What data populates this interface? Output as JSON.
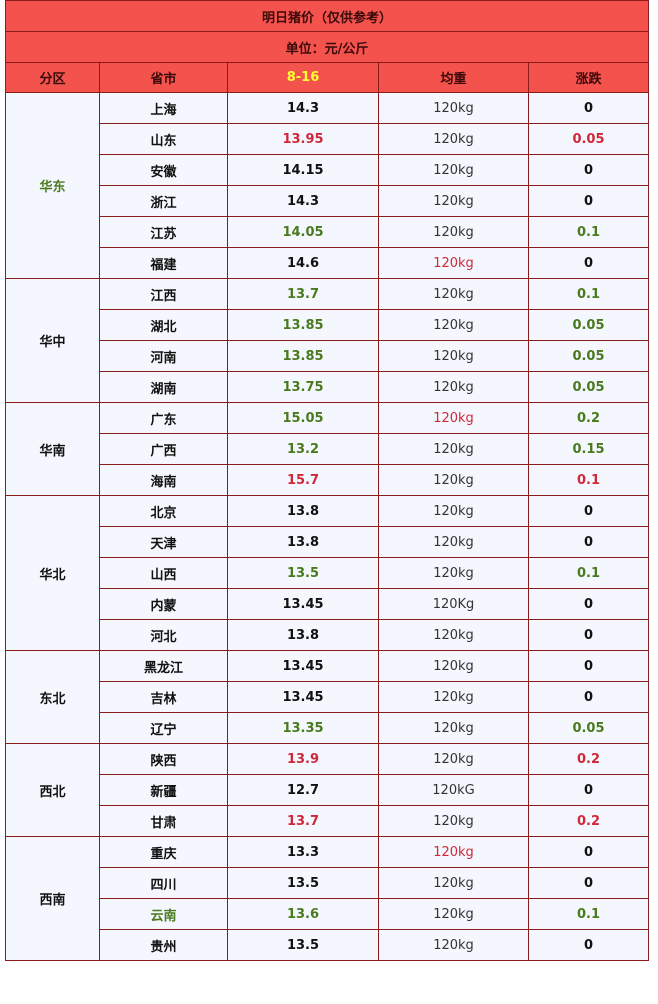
{
  "title": "明日猪价（仅供参考）",
  "unit": "单位：元/公斤",
  "headers": {
    "region": "分区",
    "province": "省市",
    "date": "8-16",
    "weight": "均重",
    "change": "涨跌"
  },
  "colors": {
    "header_bg": "#f4524d",
    "date_header": "#ffff33",
    "row_bg": "#f4f7fd",
    "border": "#8b1a1a",
    "up": "#d0283a",
    "down": "#4a7a1e"
  },
  "groups": [
    {
      "region": "华东",
      "region_color": "green",
      "rows": [
        {
          "province": "上海",
          "price": "14.3",
          "weight": "120kg",
          "change": "0"
        },
        {
          "province": "山东",
          "price": "13.95",
          "price_color": "red",
          "weight": "120kg",
          "change": "0.05",
          "change_color": "red"
        },
        {
          "province": "安徽",
          "price": "14.15",
          "weight": "120kg",
          "change": "0"
        },
        {
          "province": "浙江",
          "price": "14.3",
          "weight": "120kg",
          "change": "0"
        },
        {
          "province": "江苏",
          "price": "14.05",
          "price_color": "green",
          "weight": "120kg",
          "change": "0.1",
          "change_color": "green"
        },
        {
          "province": "福建",
          "price": "14.6",
          "weight": "120kg",
          "weight_color": "red",
          "change": "0"
        }
      ]
    },
    {
      "region": "华中",
      "rows": [
        {
          "province": "江西",
          "price": "13.7",
          "price_color": "green",
          "weight": "120kg",
          "change": "0.1",
          "change_color": "green"
        },
        {
          "province": "湖北",
          "price": "13.85",
          "price_color": "green",
          "weight": "120kg",
          "change": "0.05",
          "change_color": "green"
        },
        {
          "province": "河南",
          "price": "13.85",
          "price_color": "green",
          "weight": "120kg",
          "change": "0.05",
          "change_color": "green"
        },
        {
          "province": "湖南",
          "price": "13.75",
          "price_color": "green",
          "weight": "120kg",
          "change": "0.05",
          "change_color": "green"
        }
      ]
    },
    {
      "region": "华南",
      "rows": [
        {
          "province": "广东",
          "price": "15.05",
          "price_color": "green",
          "weight": "120kg",
          "weight_color": "red",
          "change": "0.2",
          "change_color": "green"
        },
        {
          "province": "广西",
          "price": "13.2",
          "price_color": "green",
          "weight": "120kg",
          "change": "0.15",
          "change_color": "green"
        },
        {
          "province": "海南",
          "price": "15.7",
          "price_color": "red",
          "weight": "120kg",
          "change": "0.1",
          "change_color": "red"
        }
      ]
    },
    {
      "region": "华北",
      "rows": [
        {
          "province": "北京",
          "price": "13.8",
          "weight": "120kg",
          "change": "0"
        },
        {
          "province": "天津",
          "price": "13.8",
          "weight": "120kg",
          "change": "0"
        },
        {
          "province": "山西",
          "price": "13.5",
          "price_color": "green",
          "weight": "120kg",
          "change": "0.1",
          "change_color": "green"
        },
        {
          "province": "内蒙",
          "price": "13.45",
          "weight": "120Kg",
          "change": "0"
        },
        {
          "province": "河北",
          "price": "13.8",
          "weight": "120kg",
          "change": "0"
        }
      ]
    },
    {
      "region": "东北",
      "rows": [
        {
          "province": "黑龙江",
          "price": "13.45",
          "weight": "120kg",
          "change": "0"
        },
        {
          "province": "吉林",
          "price": "13.45",
          "weight": "120kg",
          "change": "0"
        },
        {
          "province": "辽宁",
          "price": "13.35",
          "price_color": "green",
          "weight": "120kg",
          "change": "0.05",
          "change_color": "green"
        }
      ]
    },
    {
      "region": "西北",
      "rows": [
        {
          "province": "陕西",
          "price": "13.9",
          "price_color": "red",
          "weight": "120kg",
          "change": "0.2",
          "change_color": "red"
        },
        {
          "province": "新疆",
          "price": "12.7",
          "weight": "120kG",
          "change": "0"
        },
        {
          "province": "甘肃",
          "price": "13.7",
          "price_color": "red",
          "weight": "120kg",
          "change": "0.2",
          "change_color": "red"
        }
      ]
    },
    {
      "region": "西南",
      "rows": [
        {
          "province": "重庆",
          "price": "13.3",
          "weight": "120kg",
          "weight_color": "red",
          "change": "0"
        },
        {
          "province": "四川",
          "price": "13.5",
          "weight": "120kg",
          "change": "0"
        },
        {
          "province": "云南",
          "province_color": "green",
          "price": "13.6",
          "price_color": "green",
          "weight": "120kg",
          "change": "0.1",
          "change_color": "green"
        },
        {
          "province": "贵州",
          "price": "13.5",
          "weight": "120kg",
          "change": "0"
        }
      ]
    }
  ]
}
